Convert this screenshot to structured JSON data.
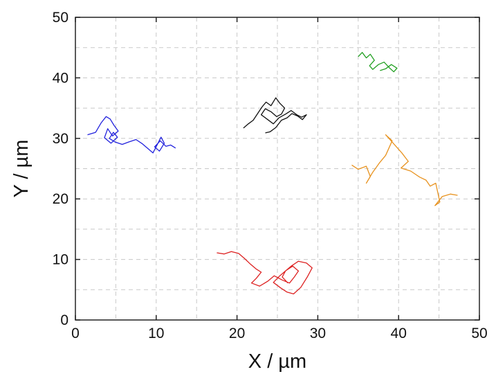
{
  "chart_data": {
    "type": "line",
    "title": "",
    "xlabel": "X / µm",
    "ylabel": "Y / µm",
    "xlim": [
      0,
      50
    ],
    "ylim": [
      0,
      50
    ],
    "x_ticks": [
      "0",
      "10",
      "20",
      "30",
      "40",
      "50"
    ],
    "y_ticks": [
      "0",
      "10",
      "20",
      "30",
      "40",
      "50"
    ],
    "grid": true,
    "legend": "none",
    "series": [
      {
        "color": "#2222dd",
        "x": [
          1.5,
          2.5,
          3.2,
          3.8,
          4.3,
          4.8,
          5.3,
          4.6,
          4.0,
          3.6,
          4.4,
          5.2,
          4.7,
          4.2,
          4.9,
          5.8,
          6.6,
          7.5,
          8.3,
          9.0,
          9.6,
          10.1,
          10.6,
          11.0,
          10.4,
          9.8,
          10.5,
          11.2,
          11.8,
          12.4
        ],
        "y": [
          30.6,
          31.0,
          32.6,
          33.6,
          33.2,
          32.1,
          31.2,
          30.4,
          31.6,
          30.1,
          29.2,
          30.2,
          31.0,
          30.0,
          29.4,
          29.0,
          29.4,
          29.8,
          29.1,
          28.3,
          27.6,
          28.9,
          30.2,
          29.2,
          27.9,
          28.6,
          29.6,
          28.7,
          28.9,
          28.4
        ]
      },
      {
        "color": "#111111",
        "x": [
          20.8,
          21.4,
          22.0,
          22.6,
          23.1,
          23.6,
          24.2,
          24.8,
          25.3,
          25.9,
          25.5,
          24.9,
          24.2,
          23.5,
          23.0,
          23.8,
          24.5,
          25.2,
          26.0,
          26.7,
          27.4,
          28.0,
          28.6,
          28.1,
          27.5,
          26.8,
          26.2,
          25.5,
          24.8,
          24.1,
          23.5
        ],
        "y": [
          31.7,
          32.4,
          33.0,
          34.2,
          35.2,
          36.0,
          35.4,
          36.7,
          35.8,
          35.0,
          34.0,
          33.6,
          34.4,
          34.9,
          33.9,
          33.1,
          32.4,
          33.4,
          34.0,
          34.6,
          33.9,
          33.5,
          33.9,
          33.1,
          33.7,
          34.1,
          33.4,
          33.0,
          31.8,
          31.1,
          30.9
        ]
      },
      {
        "color": "#22a022",
        "x": [
          35.0,
          35.5,
          36.0,
          36.5,
          37.0,
          36.4,
          36.8,
          37.5,
          38.2,
          38.9,
          39.4,
          39.8,
          39.1,
          38.4,
          37.7
        ],
        "y": [
          43.5,
          44.2,
          43.3,
          43.9,
          42.9,
          42.0,
          41.4,
          42.2,
          42.6,
          41.6,
          41.0,
          41.6,
          42.2,
          41.5,
          41.2
        ]
      },
      {
        "color": "#e89320",
        "x": [
          34.2,
          35.0,
          36.0,
          36.5,
          36.0,
          36.8,
          37.6,
          38.4,
          38.8,
          39.2,
          38.4,
          39.4,
          40.4,
          41.2,
          40.3,
          41.5,
          42.6,
          43.4,
          43.9,
          44.6,
          45.1,
          44.5,
          45.4,
          46.4,
          47.3
        ],
        "y": [
          25.6,
          24.9,
          25.4,
          23.7,
          22.6,
          24.4,
          25.9,
          27.2,
          28.4,
          29.6,
          30.6,
          29.1,
          27.6,
          26.2,
          25.1,
          24.6,
          23.6,
          23.1,
          22.1,
          22.6,
          19.5,
          18.9,
          20.4,
          20.8,
          20.6
        ]
      },
      {
        "color": "#dd2222",
        "x": [
          17.5,
          18.4,
          19.3,
          20.2,
          20.9,
          21.6,
          22.4,
          23.0,
          22.4,
          21.8,
          22.8,
          23.8,
          24.6,
          25.6,
          26.5,
          27.1,
          27.6,
          26.9,
          26.1,
          25.3,
          24.5,
          25.4,
          26.2,
          27.0,
          27.9,
          28.7,
          29.3,
          28.6,
          27.6,
          26.7,
          26.0,
          25.6,
          26.3
        ],
        "y": [
          11.1,
          10.9,
          11.3,
          11.0,
          10.2,
          9.3,
          8.4,
          7.9,
          6.9,
          6.1,
          5.6,
          6.4,
          7.3,
          6.6,
          6.1,
          7.1,
          8.1,
          8.9,
          8.2,
          7.3,
          6.2,
          5.3,
          4.6,
          4.3,
          5.4,
          7.1,
          8.6,
          9.4,
          9.7,
          8.9,
          8.1,
          7.1,
          6.1
        ]
      }
    ]
  }
}
